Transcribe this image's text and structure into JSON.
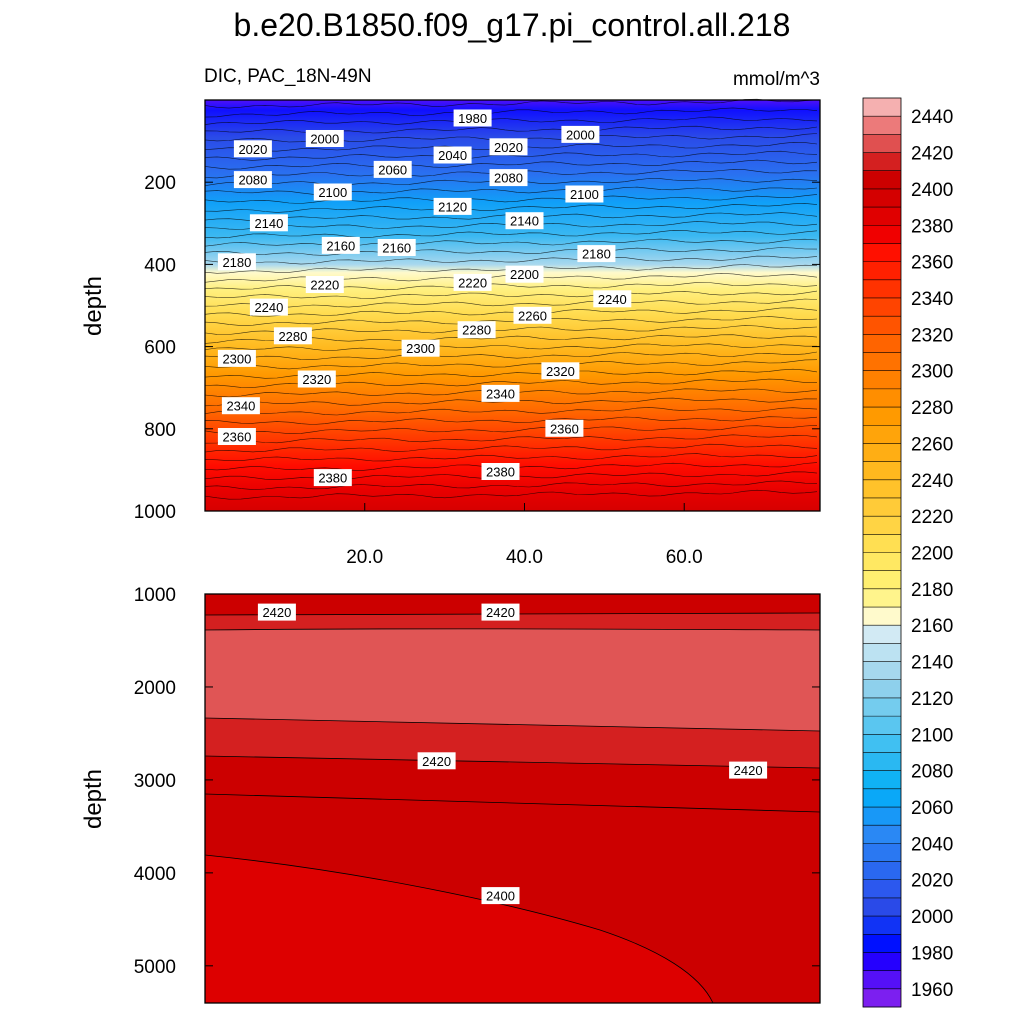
{
  "title": "b.e20.B1850.f09_g17.pi_control.all.218",
  "chart_data": {
    "type": "contour",
    "title": "b.e20.B1850.f09_g17.pi_control.all.218",
    "variable": "DIC, PAC_18N-49N",
    "units": "mmol/m^3",
    "xlabel": "",
    "ylabel": "depth",
    "x_ticks": [
      "20.0",
      "40.0",
      "60.0"
    ],
    "xlim": [
      0,
      77
    ],
    "colorbar": {
      "levels": [
        1960,
        1970,
        1980,
        1990,
        2000,
        2010,
        2020,
        2030,
        2040,
        2050,
        2060,
        2070,
        2080,
        2090,
        2100,
        2110,
        2120,
        2130,
        2140,
        2150,
        2160,
        2170,
        2180,
        2190,
        2200,
        2210,
        2220,
        2230,
        2240,
        2250,
        2260,
        2270,
        2280,
        2290,
        2300,
        2310,
        2320,
        2330,
        2340,
        2350,
        2360,
        2370,
        2380,
        2390,
        2400,
        2410,
        2420,
        2430,
        2440
      ],
      "labels": [
        "1960",
        "1980",
        "2000",
        "2020",
        "2040",
        "2060",
        "2080",
        "2100",
        "2120",
        "2140",
        "2160",
        "2180",
        "2200",
        "2220",
        "2240",
        "2260",
        "2280",
        "2300",
        "2320",
        "2340",
        "2360",
        "2380",
        "2400",
        "2420",
        "2440"
      ],
      "colors": [
        "#7c1ff0",
        "#5510f8",
        "#2500fe",
        "#0010ff",
        "#1133f5",
        "#2a4ae8",
        "#2c58ee",
        "#2a68f0",
        "#2a78f2",
        "#2a88f4",
        "#1898f7",
        "#0aa8f8",
        "#10b2f4",
        "#2ab8f2",
        "#40c0f2",
        "#5ac6f0",
        "#74ccee",
        "#8ed0ec",
        "#a6d8ee",
        "#bce2f2",
        "#d2eaf4",
        "#fffacc",
        "#fff48c",
        "#ffef70",
        "#ffe862",
        "#ffdf52",
        "#ffd444",
        "#ffcb38",
        "#ffc22a",
        "#ffb81e",
        "#ffae14",
        "#ffa40a",
        "#ff9a00",
        "#ff8e00",
        "#ff8000",
        "#ff7200",
        "#ff6400",
        "#ff5400",
        "#ff4400",
        "#ff3200",
        "#ff2000",
        "#ff1000",
        "#f00000",
        "#e00000",
        "#d40000",
        "#cc0000",
        "#d42020",
        "#e05050",
        "#ec7a7a",
        "#f5b0b0"
      ]
    },
    "upper_panel": {
      "ylim": [
        0,
        1000
      ],
      "y_ticks": [
        "200",
        "400",
        "600",
        "800",
        "1000"
      ],
      "contour_labels": [
        {
          "text": "1980",
          "x": 33.5,
          "depth": 45
        },
        {
          "text": "2000",
          "x": 15,
          "depth": 95
        },
        {
          "text": "2000",
          "x": 47,
          "depth": 85
        },
        {
          "text": "2020",
          "x": 6,
          "depth": 120
        },
        {
          "text": "2020",
          "x": 38,
          "depth": 115
        },
        {
          "text": "2040",
          "x": 31,
          "depth": 135
        },
        {
          "text": "2060",
          "x": 23.5,
          "depth": 170
        },
        {
          "text": "2080",
          "x": 6,
          "depth": 195
        },
        {
          "text": "2080",
          "x": 38,
          "depth": 190
        },
        {
          "text": "2100",
          "x": 16,
          "depth": 225
        },
        {
          "text": "2100",
          "x": 47.5,
          "depth": 230
        },
        {
          "text": "2120",
          "x": 31,
          "depth": 260
        },
        {
          "text": "2140",
          "x": 8,
          "depth": 300
        },
        {
          "text": "2140",
          "x": 40,
          "depth": 295
        },
        {
          "text": "2160",
          "x": 17,
          "depth": 355
        },
        {
          "text": "2160",
          "x": 24,
          "depth": 360
        },
        {
          "text": "2180",
          "x": 4,
          "depth": 395
        },
        {
          "text": "2180",
          "x": 49,
          "depth": 375
        },
        {
          "text": "2200",
          "x": 40,
          "depth": 425
        },
        {
          "text": "2220",
          "x": 15,
          "depth": 450
        },
        {
          "text": "2220",
          "x": 33.5,
          "depth": 445
        },
        {
          "text": "2240",
          "x": 8,
          "depth": 505
        },
        {
          "text": "2240",
          "x": 51,
          "depth": 485
        },
        {
          "text": "2260",
          "x": 41,
          "depth": 525
        },
        {
          "text": "2280",
          "x": 11,
          "depth": 575
        },
        {
          "text": "2280",
          "x": 34,
          "depth": 560
        },
        {
          "text": "2300",
          "x": 4,
          "depth": 630
        },
        {
          "text": "2300",
          "x": 27,
          "depth": 605
        },
        {
          "text": "2320",
          "x": 14,
          "depth": 680
        },
        {
          "text": "2320",
          "x": 44.5,
          "depth": 660
        },
        {
          "text": "2340",
          "x": 4.5,
          "depth": 745
        },
        {
          "text": "2340",
          "x": 37,
          "depth": 715
        },
        {
          "text": "2360",
          "x": 4,
          "depth": 820
        },
        {
          "text": "2360",
          "x": 45,
          "depth": 800
        },
        {
          "text": "2380",
          "x": 16,
          "depth": 920
        },
        {
          "text": "2380",
          "x": 37,
          "depth": 905
        }
      ]
    },
    "lower_panel": {
      "ylim": [
        1000,
        5400
      ],
      "y_ticks": [
        "1000",
        "2000",
        "3000",
        "4000",
        "5000"
      ],
      "contour_labels": [
        {
          "text": "2420",
          "x": 9,
          "depth": 1200
        },
        {
          "text": "2420",
          "x": 37,
          "depth": 1200
        },
        {
          "text": "2420",
          "x": 29,
          "depth": 2800
        },
        {
          "text": "2420",
          "x": 68,
          "depth": 2900
        },
        {
          "text": "2400",
          "x": 37,
          "depth": 4250
        }
      ]
    }
  }
}
